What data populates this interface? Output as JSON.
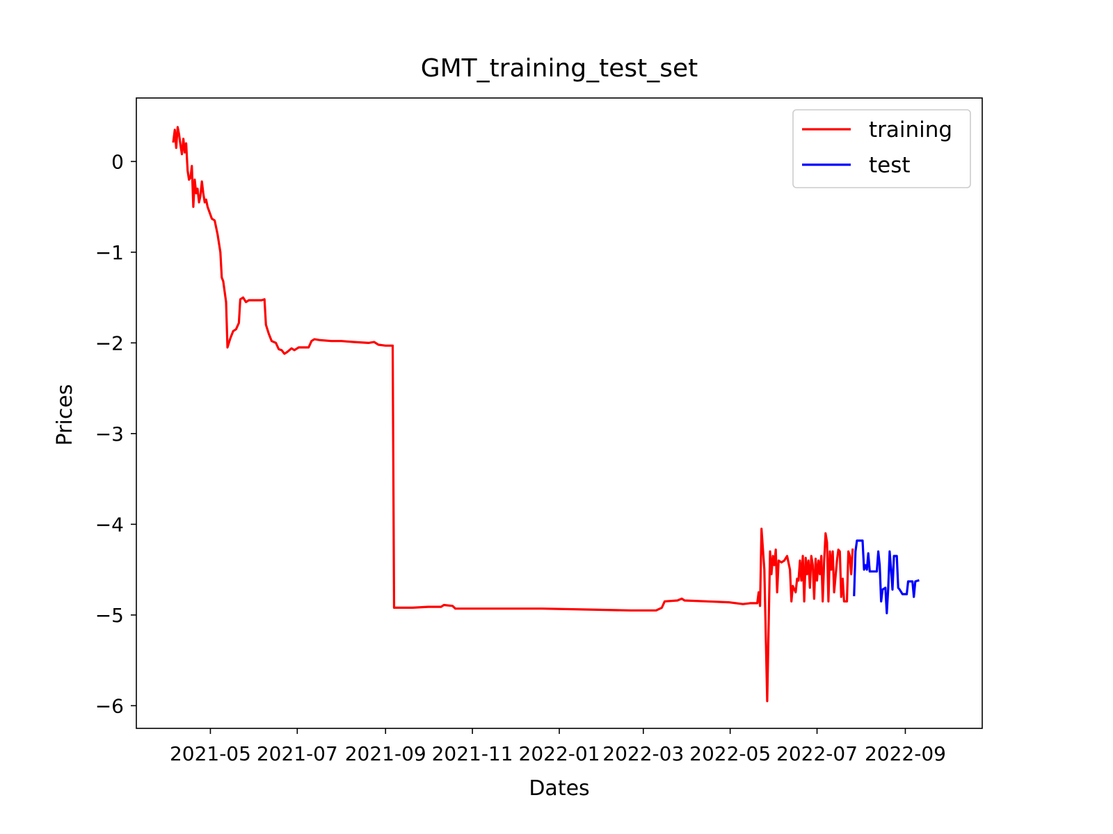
{
  "chart_data": {
    "type": "line",
    "title": "GMT_training_test_set",
    "xlabel": "Dates",
    "ylabel": "Prices",
    "xlim": [
      "2021-03-10",
      "2022-10-25"
    ],
    "ylim": [
      -6.25,
      0.7
    ],
    "x_ticks": [
      {
        "date": "2021-05-01",
        "label": "2021-05"
      },
      {
        "date": "2021-07-01",
        "label": "2021-07"
      },
      {
        "date": "2021-09-01",
        "label": "2021-09"
      },
      {
        "date": "2021-11-01",
        "label": "2021-11"
      },
      {
        "date": "2022-01-01",
        "label": "2022-01"
      },
      {
        "date": "2022-03-01",
        "label": "2022-03"
      },
      {
        "date": "2022-05-01",
        "label": "2022-05"
      },
      {
        "date": "2022-07-01",
        "label": "2022-07"
      },
      {
        "date": "2022-09-01",
        "label": "2022-09"
      }
    ],
    "y_ticks": [
      {
        "value": 0,
        "label": "0"
      },
      {
        "value": -1,
        "label": "−1"
      },
      {
        "value": -2,
        "label": "−2"
      },
      {
        "value": -3,
        "label": "−3"
      },
      {
        "value": -4,
        "label": "−4"
      },
      {
        "value": -5,
        "label": "−5"
      },
      {
        "value": -6,
        "label": "−6"
      }
    ],
    "legend_position": "top-right",
    "series": [
      {
        "name": "training",
        "color": "#ff0000",
        "points": [
          [
            "2021-04-05",
            0.22
          ],
          [
            "2021-04-06",
            0.35
          ],
          [
            "2021-04-07",
            0.15
          ],
          [
            "2021-04-08",
            0.38
          ],
          [
            "2021-04-09",
            0.3
          ],
          [
            "2021-04-10",
            0.18
          ],
          [
            "2021-04-11",
            0.08
          ],
          [
            "2021-04-12",
            0.25
          ],
          [
            "2021-04-13",
            0.1
          ],
          [
            "2021-04-14",
            0.2
          ],
          [
            "2021-04-15",
            -0.1
          ],
          [
            "2021-04-16",
            -0.2
          ],
          [
            "2021-04-17",
            -0.18
          ],
          [
            "2021-04-18",
            -0.05
          ],
          [
            "2021-04-19",
            -0.5
          ],
          [
            "2021-04-20",
            -0.2
          ],
          [
            "2021-04-21",
            -0.35
          ],
          [
            "2021-04-22",
            -0.3
          ],
          [
            "2021-04-23",
            -0.45
          ],
          [
            "2021-04-24",
            -0.38
          ],
          [
            "2021-04-25",
            -0.22
          ],
          [
            "2021-04-26",
            -0.35
          ],
          [
            "2021-04-27",
            -0.45
          ],
          [
            "2021-04-28",
            -0.42
          ],
          [
            "2021-04-29",
            -0.5
          ],
          [
            "2021-05-02",
            -0.63
          ],
          [
            "2021-05-04",
            -0.65
          ],
          [
            "2021-05-06",
            -0.8
          ],
          [
            "2021-05-08",
            -1.0
          ],
          [
            "2021-05-09",
            -1.28
          ],
          [
            "2021-05-10",
            -1.32
          ],
          [
            "2021-05-12",
            -1.55
          ],
          [
            "2021-05-13",
            -2.05
          ],
          [
            "2021-05-15",
            -1.95
          ],
          [
            "2021-05-17",
            -1.87
          ],
          [
            "2021-05-19",
            -1.85
          ],
          [
            "2021-05-21",
            -1.78
          ],
          [
            "2021-05-22",
            -1.52
          ],
          [
            "2021-05-24",
            -1.5
          ],
          [
            "2021-05-26",
            -1.55
          ],
          [
            "2021-05-28",
            -1.53
          ],
          [
            "2021-06-06",
            -1.53
          ],
          [
            "2021-06-08",
            -1.52
          ],
          [
            "2021-06-09",
            -1.8
          ],
          [
            "2021-06-11",
            -1.9
          ],
          [
            "2021-06-13",
            -1.98
          ],
          [
            "2021-06-16",
            -2.0
          ],
          [
            "2021-06-18",
            -2.07
          ],
          [
            "2021-06-20",
            -2.08
          ],
          [
            "2021-06-22",
            -2.12
          ],
          [
            "2021-06-24",
            -2.1
          ],
          [
            "2021-06-27",
            -2.06
          ],
          [
            "2021-06-29",
            -2.08
          ],
          [
            "2021-07-02",
            -2.05
          ],
          [
            "2021-07-04",
            -2.05
          ],
          [
            "2021-07-09",
            -2.05
          ],
          [
            "2021-07-11",
            -1.98
          ],
          [
            "2021-07-13",
            -1.96
          ],
          [
            "2021-07-17",
            -1.97
          ],
          [
            "2021-07-25",
            -1.98
          ],
          [
            "2021-08-01",
            -1.98
          ],
          [
            "2021-08-10",
            -1.99
          ],
          [
            "2021-08-20",
            -2.0
          ],
          [
            "2021-08-24",
            -1.99
          ],
          [
            "2021-08-27",
            -2.02
          ],
          [
            "2021-09-01",
            -2.03
          ],
          [
            "2021-09-06",
            -2.03
          ],
          [
            "2021-09-07",
            -4.92
          ],
          [
            "2021-09-20",
            -4.92
          ],
          [
            "2021-10-01",
            -4.91
          ],
          [
            "2021-10-10",
            -4.91
          ],
          [
            "2021-10-12",
            -4.89
          ],
          [
            "2021-10-18",
            -4.9
          ],
          [
            "2021-10-20",
            -4.93
          ],
          [
            "2021-11-15",
            -4.93
          ],
          [
            "2021-12-20",
            -4.93
          ],
          [
            "2022-01-20",
            -4.94
          ],
          [
            "2022-02-20",
            -4.95
          ],
          [
            "2022-03-10",
            -4.95
          ],
          [
            "2022-03-14",
            -4.92
          ],
          [
            "2022-03-16",
            -4.85
          ],
          [
            "2022-03-25",
            -4.84
          ],
          [
            "2022-03-28",
            -4.82
          ],
          [
            "2022-03-30",
            -4.84
          ],
          [
            "2022-04-15",
            -4.85
          ],
          [
            "2022-04-30",
            -4.86
          ],
          [
            "2022-05-10",
            -4.88
          ],
          [
            "2022-05-15",
            -4.87
          ],
          [
            "2022-05-20",
            -4.87
          ],
          [
            "2022-05-21",
            -4.75
          ],
          [
            "2022-05-22",
            -4.9
          ],
          [
            "2022-05-23",
            -4.05
          ],
          [
            "2022-05-25",
            -4.5
          ],
          [
            "2022-05-27",
            -5.95
          ],
          [
            "2022-05-29",
            -4.3
          ],
          [
            "2022-05-30",
            -4.55
          ],
          [
            "2022-05-31",
            -4.35
          ],
          [
            "2022-06-01",
            -4.45
          ],
          [
            "2022-06-02",
            -4.28
          ],
          [
            "2022-06-03",
            -4.75
          ],
          [
            "2022-06-04",
            -4.4
          ],
          [
            "2022-06-06",
            -4.42
          ],
          [
            "2022-06-08",
            -4.4
          ],
          [
            "2022-06-10",
            -4.35
          ],
          [
            "2022-06-12",
            -4.5
          ],
          [
            "2022-06-13",
            -4.85
          ],
          [
            "2022-06-14",
            -4.68
          ],
          [
            "2022-06-16",
            -4.75
          ],
          [
            "2022-06-17",
            -4.6
          ],
          [
            "2022-06-18",
            -4.62
          ],
          [
            "2022-06-19",
            -4.4
          ],
          [
            "2022-06-20",
            -4.62
          ],
          [
            "2022-06-21",
            -4.35
          ],
          [
            "2022-06-22",
            -4.85
          ],
          [
            "2022-06-23",
            -4.37
          ],
          [
            "2022-06-24",
            -4.55
          ],
          [
            "2022-06-25",
            -4.4
          ],
          [
            "2022-06-26",
            -4.7
          ],
          [
            "2022-06-27",
            -4.35
          ],
          [
            "2022-06-28",
            -4.45
          ],
          [
            "2022-06-29",
            -4.82
          ],
          [
            "2022-06-30",
            -4.38
          ],
          [
            "2022-07-01",
            -4.62
          ],
          [
            "2022-07-02",
            -4.4
          ],
          [
            "2022-07-03",
            -4.55
          ],
          [
            "2022-07-04",
            -4.35
          ],
          [
            "2022-07-05",
            -4.85
          ],
          [
            "2022-07-06",
            -4.4
          ],
          [
            "2022-07-07",
            -4.1
          ],
          [
            "2022-07-08",
            -4.2
          ],
          [
            "2022-07-09",
            -4.85
          ],
          [
            "2022-07-10",
            -4.3
          ],
          [
            "2022-07-11",
            -4.5
          ],
          [
            "2022-07-12",
            -4.3
          ],
          [
            "2022-07-13",
            -4.75
          ],
          [
            "2022-07-15",
            -4.4
          ],
          [
            "2022-07-16",
            -4.28
          ],
          [
            "2022-07-17",
            -4.3
          ],
          [
            "2022-07-18",
            -4.8
          ],
          [
            "2022-07-19",
            -4.6
          ],
          [
            "2022-07-20",
            -4.85
          ],
          [
            "2022-07-22",
            -4.85
          ],
          [
            "2022-07-23",
            -4.3
          ],
          [
            "2022-07-24",
            -4.35
          ],
          [
            "2022-07-25",
            -4.55
          ],
          [
            "2022-07-26",
            -4.28
          ]
        ]
      },
      {
        "name": "test",
        "color": "#0000ff",
        "points": [
          [
            "2022-07-27",
            -4.78
          ],
          [
            "2022-07-28",
            -4.3
          ],
          [
            "2022-07-29",
            -4.18
          ],
          [
            "2022-08-02",
            -4.18
          ],
          [
            "2022-08-03",
            -4.5
          ],
          [
            "2022-08-04",
            -4.45
          ],
          [
            "2022-08-05",
            -4.5
          ],
          [
            "2022-08-06",
            -4.32
          ],
          [
            "2022-08-07",
            -4.52
          ],
          [
            "2022-08-12",
            -4.52
          ],
          [
            "2022-08-13",
            -4.3
          ],
          [
            "2022-08-14",
            -4.45
          ],
          [
            "2022-08-15",
            -4.85
          ],
          [
            "2022-08-16",
            -4.72
          ],
          [
            "2022-08-18",
            -4.7
          ],
          [
            "2022-08-19",
            -4.98
          ],
          [
            "2022-08-20",
            -4.7
          ],
          [
            "2022-08-21",
            -4.3
          ],
          [
            "2022-08-22",
            -4.5
          ],
          [
            "2022-08-23",
            -4.72
          ],
          [
            "2022-08-24",
            -4.35
          ],
          [
            "2022-08-26",
            -4.35
          ],
          [
            "2022-08-27",
            -4.7
          ],
          [
            "2022-08-28",
            -4.72
          ],
          [
            "2022-08-30",
            -4.77
          ],
          [
            "2022-09-02",
            -4.77
          ],
          [
            "2022-09-03",
            -4.63
          ],
          [
            "2022-09-06",
            -4.63
          ],
          [
            "2022-09-07",
            -4.8
          ],
          [
            "2022-09-08",
            -4.63
          ],
          [
            "2022-09-10",
            -4.62
          ]
        ]
      }
    ]
  }
}
